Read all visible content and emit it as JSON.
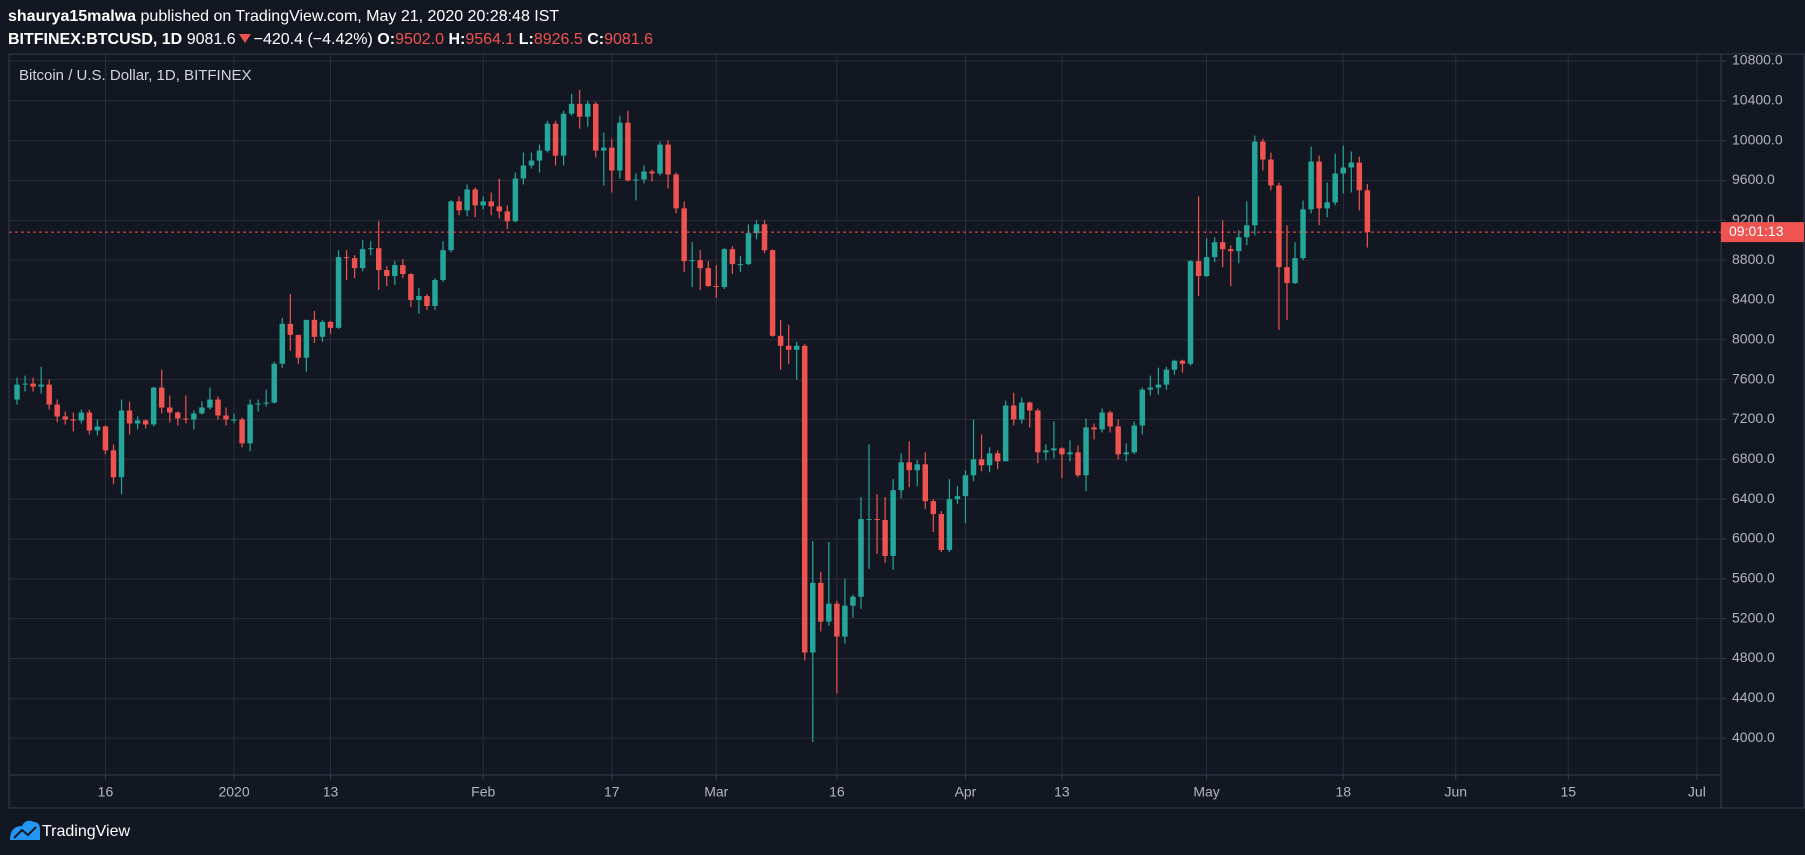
{
  "header": {
    "user": "shaurya15malwa",
    "published": "published on TradingView.com, May 21, 2020 20:28:48 IST",
    "symbol": "BITFINEX:BTCUSD, 1D",
    "last": "9081.6",
    "change": "−420.4 (−4.42%)",
    "ohlc": [
      {
        "label": "O:",
        "value": "9502.0"
      },
      {
        "label": "H:",
        "value": "9564.1"
      },
      {
        "label": "L:",
        "value": "8926.5"
      },
      {
        "label": "C:",
        "value": "9081.6"
      }
    ]
  },
  "footer": {
    "brand": "TradingView"
  },
  "chart_data": {
    "type": "candlestick",
    "title": "Bitcoin / U.S. Dollar, 1D, BITFINEX",
    "up_color": "#26a69a",
    "down_color": "#ef5350",
    "grid": true,
    "x": [
      "2019-12-05",
      "2019-12-06",
      "2019-12-07",
      "2019-12-08",
      "2019-12-09",
      "2019-12-10",
      "2019-12-11",
      "2019-12-12",
      "2019-12-13",
      "2019-12-14",
      "2019-12-15",
      "2019-12-16",
      "2019-12-17",
      "2019-12-18",
      "2019-12-19",
      "2019-12-20",
      "2019-12-21",
      "2019-12-22",
      "2019-12-23",
      "2019-12-24",
      "2019-12-25",
      "2019-12-26",
      "2019-12-27",
      "2019-12-28",
      "2019-12-29",
      "2019-12-30",
      "2019-12-31",
      "2020-01-01",
      "2020-01-02",
      "2020-01-03",
      "2020-01-04",
      "2020-01-05",
      "2020-01-06",
      "2020-01-07",
      "2020-01-08",
      "2020-01-09",
      "2020-01-10",
      "2020-01-11",
      "2020-01-12",
      "2020-01-13",
      "2020-01-14",
      "2020-01-15",
      "2020-01-16",
      "2020-01-17",
      "2020-01-18",
      "2020-01-19",
      "2020-01-20",
      "2020-01-21",
      "2020-01-22",
      "2020-01-23",
      "2020-01-24",
      "2020-01-25",
      "2020-01-26",
      "2020-01-27",
      "2020-01-28",
      "2020-01-29",
      "2020-01-30",
      "2020-01-31",
      "2020-02-01",
      "2020-02-02",
      "2020-02-03",
      "2020-02-04",
      "2020-02-05",
      "2020-02-06",
      "2020-02-07",
      "2020-02-08",
      "2020-02-09",
      "2020-02-10",
      "2020-02-11",
      "2020-02-12",
      "2020-02-13",
      "2020-02-14",
      "2020-02-15",
      "2020-02-16",
      "2020-02-17",
      "2020-02-18",
      "2020-02-19",
      "2020-02-20",
      "2020-02-21",
      "2020-02-22",
      "2020-02-23",
      "2020-02-24",
      "2020-02-25",
      "2020-02-26",
      "2020-02-27",
      "2020-02-28",
      "2020-02-29",
      "2020-03-01",
      "2020-03-02",
      "2020-03-03",
      "2020-03-04",
      "2020-03-05",
      "2020-03-06",
      "2020-03-07",
      "2020-03-08",
      "2020-03-09",
      "2020-03-10",
      "2020-03-11",
      "2020-03-12",
      "2020-03-13",
      "2020-03-14",
      "2020-03-15",
      "2020-03-16",
      "2020-03-17",
      "2020-03-18",
      "2020-03-19",
      "2020-03-20",
      "2020-03-21",
      "2020-03-22",
      "2020-03-23",
      "2020-03-24",
      "2020-03-25",
      "2020-03-26",
      "2020-03-27",
      "2020-03-28",
      "2020-03-29",
      "2020-03-30",
      "2020-03-31",
      "2020-04-01",
      "2020-04-02",
      "2020-04-03",
      "2020-04-04",
      "2020-04-05",
      "2020-04-06",
      "2020-04-07",
      "2020-04-08",
      "2020-04-09",
      "2020-04-10",
      "2020-04-11",
      "2020-04-12",
      "2020-04-13",
      "2020-04-14",
      "2020-04-15",
      "2020-04-16",
      "2020-04-17",
      "2020-04-18",
      "2020-04-19",
      "2020-04-20",
      "2020-04-21",
      "2020-04-22",
      "2020-04-23",
      "2020-04-24",
      "2020-04-25",
      "2020-04-26",
      "2020-04-27",
      "2020-04-28",
      "2020-04-29",
      "2020-04-30",
      "2020-05-01",
      "2020-05-02",
      "2020-05-03",
      "2020-05-04",
      "2020-05-05",
      "2020-05-06",
      "2020-05-07",
      "2020-05-08",
      "2020-05-09",
      "2020-05-10",
      "2020-05-11",
      "2020-05-12",
      "2020-05-13",
      "2020-05-14",
      "2020-05-15",
      "2020-05-16",
      "2020-05-17",
      "2020-05-18",
      "2020-05-19",
      "2020-05-20",
      "2020-05-21"
    ],
    "open": [
      7400,
      7550,
      7560,
      7530,
      7550,
      7350,
      7230,
      7200,
      7190,
      7270,
      7090,
      7130,
      6890,
      6620,
      7290,
      7160,
      7190,
      7150,
      7520,
      7320,
      7270,
      7210,
      7200,
      7260,
      7320,
      7400,
      7240,
      7200,
      7200,
      6960,
      7350,
      7360,
      7370,
      7760,
      8160,
      8050,
      7820,
      8200,
      8030,
      8180,
      8120,
      8830,
      8820,
      8720,
      8910,
      8920,
      8700,
      8640,
      8750,
      8660,
      8400,
      8440,
      8340,
      8600,
      8900,
      9390,
      9300,
      9510,
      9350,
      9390,
      9340,
      9290,
      9190,
      9620,
      9750,
      9800,
      9900,
      10170,
      9850,
      10270,
      10370,
      10240,
      10370,
      9900,
      9930,
      9700,
      10180,
      9600,
      9610,
      9690,
      9670,
      9960,
      9660,
      9320,
      8790,
      8800,
      8720,
      8540,
      8530,
      8910,
      8760,
      8760,
      9070,
      9160,
      8900,
      8040,
      7940,
      7900,
      7940,
      4860,
      5560,
      5170,
      5350,
      5020,
      5330,
      5420,
      6200,
      6200,
      6190,
      5830,
      6490,
      6770,
      6690,
      6750,
      6380,
      6250,
      5890,
      6400,
      6430,
      6640,
      6800,
      6740,
      6860,
      6780,
      7340,
      7200,
      7370,
      7290,
      6870,
      6890,
      6910,
      6850,
      6870,
      6640,
      7120,
      7100,
      7270,
      7130,
      6850,
      6870,
      7140,
      7500,
      7520,
      7550,
      7700,
      7790,
      7760,
      8790,
      8640,
      8830,
      8980,
      8910,
      8890,
      9030,
      9150,
      9990,
      9810,
      9550,
      8730,
      8570,
      8820,
      9310,
      9790,
      9320,
      9380,
      9670,
      9730,
      9780,
      9502.0
    ],
    "high": [
      7620,
      7640,
      7620,
      7730,
      7600,
      7400,
      7280,
      7270,
      7300,
      7300,
      7200,
      7140,
      6950,
      7400,
      7380,
      7230,
      7200,
      7530,
      7700,
      7440,
      7280,
      7440,
      7290,
      7380,
      7520,
      7430,
      7320,
      7260,
      7220,
      7400,
      7400,
      7500,
      7780,
      8220,
      8460,
      8050,
      8200,
      8290,
      8200,
      8190,
      8900,
      8900,
      8850,
      9000,
      8990,
      9190,
      8740,
      8790,
      8810,
      8670,
      8520,
      8460,
      8620,
      8990,
      9400,
      9440,
      9560,
      9530,
      9440,
      9480,
      9620,
      9350,
      9680,
      9880,
      9880,
      9960,
      10200,
      10200,
      10300,
      10470,
      10510,
      10400,
      10390,
      10080,
      10020,
      10250,
      10300,
      9670,
      9750,
      9710,
      9990,
      10000,
      9680,
      9390,
      8980,
      8900,
      8790,
      8750,
      8920,
      8940,
      8840,
      9160,
      9200,
      9200,
      8910,
      8200,
      8150,
      7980,
      7960,
      5980,
      5670,
      5970,
      5380,
      5600,
      5440,
      6420,
      6950,
      6450,
      6420,
      6600,
      6860,
      6980,
      6790,
      6870,
      6400,
      6280,
      6600,
      6530,
      6690,
      7200,
      7050,
      6920,
      6890,
      7390,
      7470,
      7420,
      7380,
      7310,
      6950,
      7180,
      6920,
      6990,
      6940,
      7210,
      7160,
      7310,
      7290,
      7200,
      6960,
      7180,
      7520,
      7640,
      7720,
      7730,
      7800,
      7800,
      8800,
      9440,
      9020,
      9030,
      9200,
      8950,
      9100,
      9390,
      10050,
      10020,
      9880,
      9580,
      9150,
      8980,
      9400,
      9940,
      9850,
      9580,
      9870,
      9950,
      9890,
      9840,
      9564.1
    ],
    "low": [
      7350,
      7480,
      7480,
      7460,
      7300,
      7170,
      7150,
      7080,
      7160,
      7050,
      7040,
      6850,
      6550,
      6450,
      7050,
      7100,
      7110,
      7130,
      7260,
      7170,
      7140,
      7160,
      7100,
      7250,
      7300,
      7200,
      7140,
      7160,
      6920,
      6880,
      7280,
      7330,
      7360,
      7720,
      7890,
      7760,
      7680,
      7970,
      7980,
      8060,
      8110,
      8600,
      8620,
      8690,
      8850,
      8500,
      8540,
      8550,
      8620,
      8330,
      8260,
      8300,
      8300,
      8580,
      8880,
      9250,
      9240,
      9230,
      9310,
      9250,
      9220,
      9110,
      9180,
      9560,
      9720,
      9680,
      9880,
      9750,
      9750,
      10250,
      10120,
      10140,
      9830,
      9550,
      9480,
      9620,
      9590,
      9400,
      9570,
      9590,
      9650,
      9520,
      9270,
      8680,
      8530,
      8500,
      8530,
      8420,
      8510,
      8660,
      8680,
      8750,
      9010,
      8870,
      8030,
      7700,
      7760,
      7600,
      4780,
      3960,
      5070,
      5130,
      4450,
      4950,
      5210,
      5300,
      5700,
      5850,
      5760,
      5690,
      6410,
      6520,
      6530,
      6300,
      6070,
      5870,
      5870,
      6350,
      6160,
      6580,
      6680,
      6670,
      6700,
      6780,
      7140,
      7160,
      7120,
      6760,
      6790,
      6810,
      6610,
      6780,
      6620,
      6480,
      7000,
      7070,
      7070,
      6800,
      6780,
      6850,
      7050,
      7440,
      7450,
      7500,
      7650,
      7670,
      7740,
      8440,
      8630,
      8780,
      8730,
      8540,
      8770,
      8950,
      9050,
      9700,
      9500,
      8100,
      8200,
      8560,
      8800,
      9270,
      9150,
      9230,
      9350,
      9470,
      9480,
      9300,
      8926.5
    ],
    "close": [
      7550,
      7560,
      7530,
      7550,
      7350,
      7230,
      7200,
      7190,
      7270,
      7090,
      7130,
      6890,
      6620,
      7290,
      7160,
      7190,
      7150,
      7520,
      7320,
      7270,
      7210,
      7200,
      7260,
      7320,
      7400,
      7240,
      7200,
      7200,
      6960,
      7350,
      7360,
      7370,
      7760,
      8160,
      8050,
      7820,
      8200,
      8030,
      8180,
      8120,
      8830,
      8820,
      8720,
      8910,
      8920,
      8700,
      8640,
      8750,
      8660,
      8400,
      8440,
      8340,
      8600,
      8900,
      9390,
      9300,
      9510,
      9350,
      9390,
      9340,
      9290,
      9190,
      9620,
      9750,
      9800,
      9900,
      10170,
      9850,
      10270,
      10370,
      10240,
      10370,
      9900,
      9930,
      9700,
      10180,
      9600,
      9610,
      9690,
      9670,
      9960,
      9660,
      9320,
      8790,
      8800,
      8720,
      8540,
      8530,
      8910,
      8760,
      8760,
      9070,
      9160,
      8900,
      8040,
      7940,
      7900,
      7940,
      4860,
      5560,
      5170,
      5350,
      5020,
      5330,
      5420,
      6200,
      6200,
      6190,
      5830,
      6490,
      6770,
      6690,
      6750,
      6380,
      6250,
      5890,
      6400,
      6430,
      6640,
      6800,
      6740,
      6860,
      6780,
      7340,
      7200,
      7370,
      7290,
      6870,
      6890,
      6910,
      6850,
      6870,
      6640,
      7120,
      7100,
      7270,
      7130,
      6850,
      6870,
      7140,
      7500,
      7520,
      7550,
      7700,
      7790,
      7760,
      8790,
      8640,
      8830,
      8980,
      8910,
      8890,
      9030,
      9150,
      9990,
      9810,
      9550,
      8730,
      8570,
      8820,
      9310,
      9790,
      9320,
      9380,
      9670,
      9730,
      9780,
      9502.0,
      9081.6
    ],
    "xlim": [
      "2019-12-04",
      "2020-07-04"
    ],
    "xticks": [
      {
        "value": "2019-12-16",
        "label": "16"
      },
      {
        "value": "2020-01-01",
        "label": "2020"
      },
      {
        "value": "2020-01-13",
        "label": "13"
      },
      {
        "value": "2020-02-01",
        "label": "Feb"
      },
      {
        "value": "2020-02-17",
        "label": "17"
      },
      {
        "value": "2020-03-01",
        "label": "Mar"
      },
      {
        "value": "2020-03-16",
        "label": "16"
      },
      {
        "value": "2020-04-01",
        "label": "Apr"
      },
      {
        "value": "2020-04-13",
        "label": "13"
      },
      {
        "value": "2020-05-01",
        "label": "May"
      },
      {
        "value": "2020-05-18",
        "label": "18"
      },
      {
        "value": "2020-06-01",
        "label": "Jun"
      },
      {
        "value": "2020-06-15",
        "label": "15"
      },
      {
        "value": "2020-07-01",
        "label": "Jul"
      }
    ],
    "ylim": [
      3630,
      10870
    ],
    "yticks": [
      {
        "value": 4000,
        "label": "4000.0"
      },
      {
        "value": 4400,
        "label": "4400.0"
      },
      {
        "value": 4800,
        "label": "4800.0"
      },
      {
        "value": 5200,
        "label": "5200.0"
      },
      {
        "value": 5600,
        "label": "5600.0"
      },
      {
        "value": 6000,
        "label": "6000.0"
      },
      {
        "value": 6400,
        "label": "6400.0"
      },
      {
        "value": 6800,
        "label": "6800.0"
      },
      {
        "value": 7200,
        "label": "7200.0"
      },
      {
        "value": 7600,
        "label": "7600.0"
      },
      {
        "value": 8000,
        "label": "8000.0"
      },
      {
        "value": 8400,
        "label": "8400.0"
      },
      {
        "value": 8800,
        "label": "8800.0"
      },
      {
        "value": 9200,
        "label": "9200.0"
      },
      {
        "value": 9600,
        "label": "9600.0"
      },
      {
        "value": 10000,
        "label": "10000.0"
      },
      {
        "value": 10400,
        "label": "10400.0"
      },
      {
        "value": 10800,
        "label": "10800.0"
      }
    ],
    "price_line": {
      "value": 9081.6,
      "label": "09:01:13",
      "color": "#ef5350"
    }
  }
}
